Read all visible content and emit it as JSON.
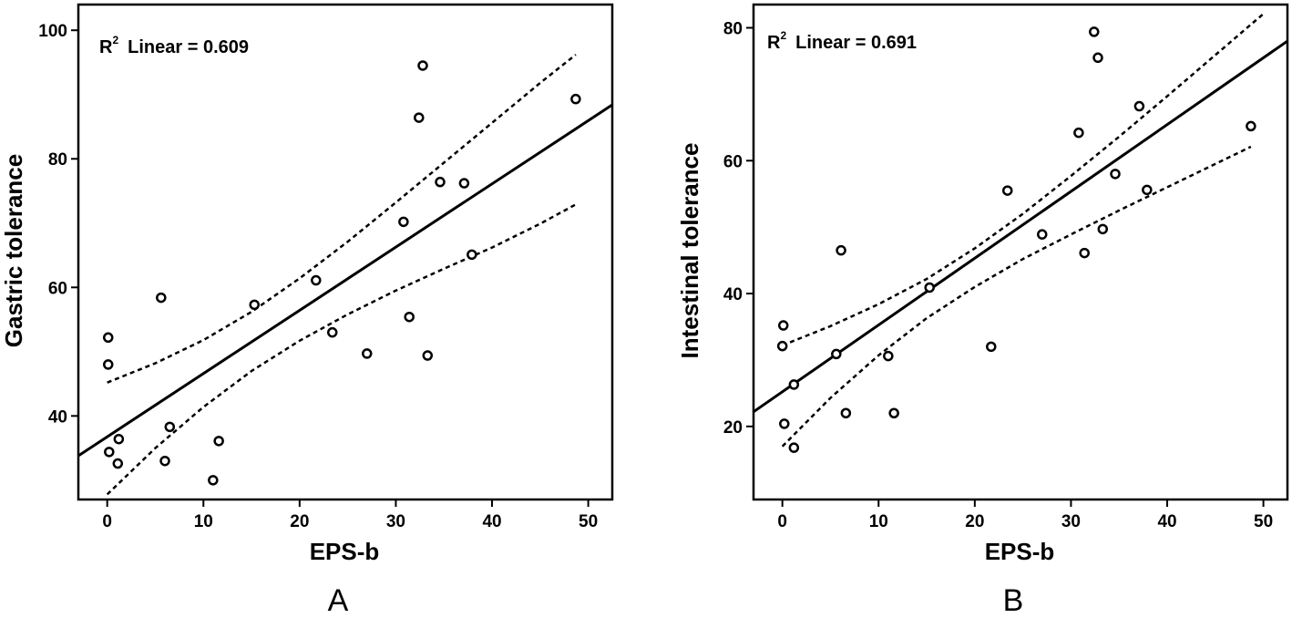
{
  "chart_data": [
    {
      "type": "scatter",
      "panel_label": "A",
      "xlabel": "EPS-b",
      "ylabel": "Gastric tolerance",
      "xlim": [
        -3,
        52.5
      ],
      "ylim": [
        27,
        104
      ],
      "xticks": [
        0,
        10,
        20,
        30,
        40,
        50
      ],
      "yticks": [
        40,
        60,
        80,
        100
      ],
      "annotation": {
        "r_symbol": "R",
        "superscript": "2",
        "text": "Linear = 0.609"
      },
      "points": [
        {
          "x": 0.1,
          "y": 52.2
        },
        {
          "x": 0.1,
          "y": 48.0
        },
        {
          "x": 0.2,
          "y": 34.4
        },
        {
          "x": 1.2,
          "y": 36.4
        },
        {
          "x": 1.1,
          "y": 32.6
        },
        {
          "x": 5.6,
          "y": 58.4
        },
        {
          "x": 6.5,
          "y": 38.3
        },
        {
          "x": 6.0,
          "y": 33.0
        },
        {
          "x": 11.0,
          "y": 30.0
        },
        {
          "x": 11.6,
          "y": 36.1
        },
        {
          "x": 15.3,
          "y": 57.3
        },
        {
          "x": 21.7,
          "y": 61.1
        },
        {
          "x": 23.4,
          "y": 53.0
        },
        {
          "x": 27.0,
          "y": 49.7
        },
        {
          "x": 30.8,
          "y": 70.2
        },
        {
          "x": 31.4,
          "y": 55.4
        },
        {
          "x": 32.4,
          "y": 86.4
        },
        {
          "x": 32.8,
          "y": 94.5
        },
        {
          "x": 33.3,
          "y": 49.4
        },
        {
          "x": 34.6,
          "y": 76.4
        },
        {
          "x": 37.1,
          "y": 76.2
        },
        {
          "x": 37.9,
          "y": 65.1
        },
        {
          "x": 48.7,
          "y": 89.3
        }
      ],
      "fit_line": {
        "x": [
          -3,
          52.5
        ],
        "y": [
          33.8,
          88.4
        ]
      },
      "ci_upper": {
        "x": [
          0,
          5,
          10,
          15,
          20,
          25,
          30,
          35,
          40,
          45,
          48.7
        ],
        "y": [
          45.2,
          48.2,
          51.8,
          56.2,
          61.4,
          67.1,
          73.2,
          79.4,
          85.6,
          91.8,
          96.2
        ]
      },
      "ci_lower": {
        "x": [
          0,
          5,
          10,
          15,
          20,
          25,
          30,
          35,
          40,
          45,
          48.7
        ],
        "y": [
          27.8,
          35.0,
          41.4,
          47.0,
          51.7,
          55.8,
          59.5,
          62.9,
          66.2,
          69.9,
          72.9
        ]
      }
    },
    {
      "type": "scatter",
      "panel_label": "B",
      "xlabel": "EPS-b",
      "ylabel": "Intestinal tolerance",
      "xlim": [
        -3,
        52.5
      ],
      "ylim": [
        9,
        83.5
      ],
      "xticks": [
        0,
        10,
        20,
        30,
        40,
        50
      ],
      "yticks": [
        20,
        40,
        60,
        80
      ],
      "annotation": {
        "r_symbol": "R",
        "superscript": "2",
        "text": "Linear = 0.691"
      },
      "points": [
        {
          "x": 0.1,
          "y": 35.2
        },
        {
          "x": 0.0,
          "y": 32.1
        },
        {
          "x": 0.2,
          "y": 20.4
        },
        {
          "x": 1.2,
          "y": 26.3
        },
        {
          "x": 1.2,
          "y": 16.8
        },
        {
          "x": 5.6,
          "y": 30.9
        },
        {
          "x": 6.1,
          "y": 46.5
        },
        {
          "x": 6.6,
          "y": 22.0
        },
        {
          "x": 11.0,
          "y": 30.6
        },
        {
          "x": 11.6,
          "y": 22.0
        },
        {
          "x": 15.3,
          "y": 40.9
        },
        {
          "x": 21.7,
          "y": 32.0
        },
        {
          "x": 23.4,
          "y": 55.5
        },
        {
          "x": 27.0,
          "y": 48.9
        },
        {
          "x": 30.8,
          "y": 64.2
        },
        {
          "x": 31.4,
          "y": 46.1
        },
        {
          "x": 32.4,
          "y": 79.4
        },
        {
          "x": 32.8,
          "y": 75.5
        },
        {
          "x": 33.3,
          "y": 49.7
        },
        {
          "x": 34.6,
          "y": 58.0
        },
        {
          "x": 37.1,
          "y": 68.2
        },
        {
          "x": 37.9,
          "y": 55.6
        },
        {
          "x": 48.7,
          "y": 65.2
        }
      ],
      "fit_line": {
        "x": [
          -3,
          52.5
        ],
        "y": [
          22.2,
          78.0
        ]
      },
      "ci_upper": {
        "x": [
          0,
          5,
          10,
          15,
          20,
          25,
          30,
          35,
          40,
          45,
          50
        ],
        "y": [
          32.2,
          35.1,
          38.4,
          42.2,
          46.8,
          52.0,
          57.7,
          63.6,
          69.7,
          75.9,
          82.1
        ]
      },
      "ci_lower": {
        "x": [
          0,
          5,
          10,
          15,
          20,
          25,
          30,
          35,
          40,
          45,
          48.7
        ],
        "y": [
          17.0,
          24.3,
          30.7,
          36.3,
          41.0,
          45.2,
          48.9,
          52.5,
          56.0,
          59.5,
          62.1
        ]
      }
    }
  ]
}
